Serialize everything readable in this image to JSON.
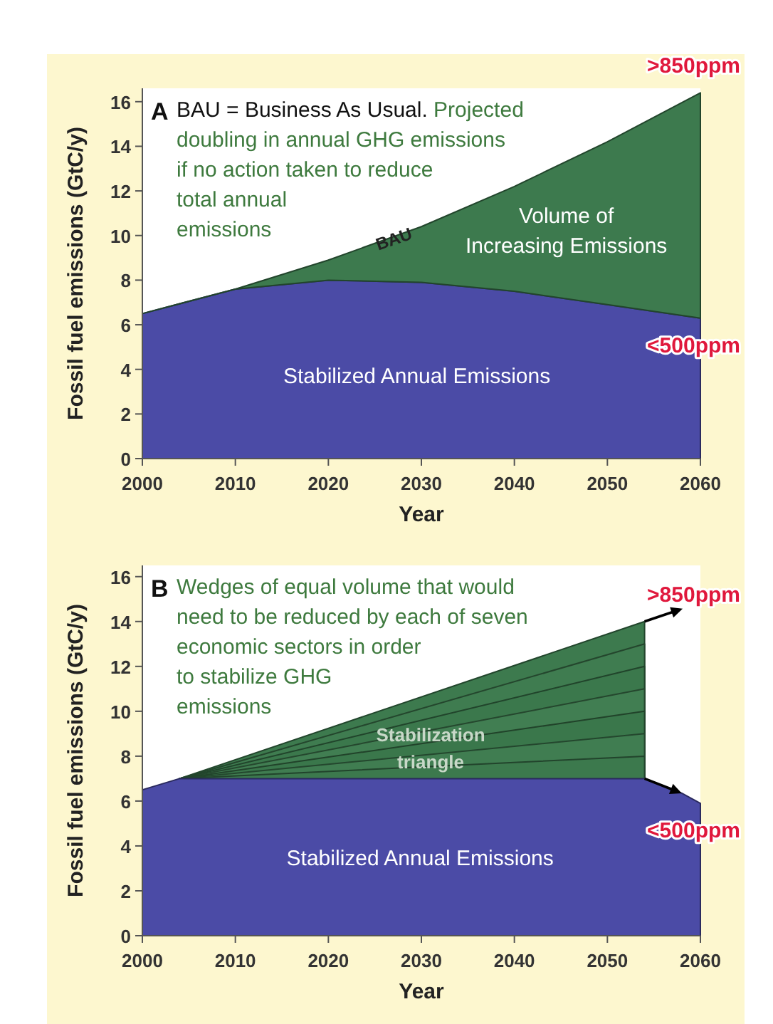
{
  "chart_data": [
    {
      "type": "area",
      "title": "A",
      "xlabel": "Year",
      "ylabel": "Fossil fuel emissions (GtC/y)",
      "stacked": true,
      "x": [
        2000,
        2010,
        2020,
        2030,
        2040,
        2050,
        2060
      ],
      "series": [
        {
          "name": "Stabilized Annual Emissions",
          "color": "#4b4ba6",
          "values": [
            6.5,
            7.6,
            8.0,
            7.9,
            7.5,
            6.9,
            6.3
          ]
        },
        {
          "name": "Volume of Increasing Emissions",
          "color": "#3d7a4e",
          "values": [
            0,
            0,
            0.9,
            2.5,
            4.7,
            7.3,
            10.1
          ]
        }
      ],
      "xlim": [
        2000,
        2060
      ],
      "xticks": [
        2000,
        2010,
        2020,
        2030,
        2040,
        2050,
        2060
      ],
      "ylim": [
        0,
        16.6
      ],
      "yticks": [
        0,
        2,
        4,
        6,
        8,
        10,
        12,
        14,
        16
      ],
      "annotations": [
        "BAU = Business As Usual.",
        "Projected doubling in annual GHG emissions if no action taken to reduce total annual emissions",
        {
          "text": "BAU",
          "x": 2027,
          "y": 9.9
        },
        {
          "text": ">850ppm",
          "x": 2060,
          "y": 16.4
        },
        {
          "text": "<500ppm",
          "x": 2060,
          "y": 6.3
        }
      ]
    },
    {
      "type": "area",
      "title": "B",
      "xlabel": "Year",
      "ylabel": "Fossil fuel emissions (GtC/y)",
      "x": [
        2004,
        2054
      ],
      "series": [
        {
          "color": "#3d7a4e",
          "values": [
            7,
            14
          ]
        },
        {
          "color": "#3f7c50",
          "values": [
            7,
            13
          ]
        },
        {
          "color": "#3b784c",
          "values": [
            7,
            12
          ]
        },
        {
          "color": "#417e52",
          "values": [
            7,
            11
          ]
        },
        {
          "color": "#3a774b",
          "values": [
            7,
            10
          ]
        },
        {
          "color": "#407d51",
          "values": [
            7,
            9
          ]
        },
        {
          "color": "#3c794d",
          "values": [
            7,
            8
          ]
        },
        {
          "name": "Stabilized Annual Emissions",
          "color": "#4b4ba6",
          "x": [
            2000,
            2004,
            2054,
            2058,
            2060
          ],
          "values": [
            6.5,
            7,
            7,
            6.35,
            5.9
          ]
        }
      ],
      "xlim": [
        2000,
        2060
      ],
      "xticks": [
        2000,
        2010,
        2020,
        2030,
        2040,
        2050,
        2060
      ],
      "ylim": [
        0,
        16.5
      ],
      "yticks": [
        0,
        2,
        4,
        6,
        8,
        10,
        12,
        14,
        16
      ],
      "annotations": [
        "Wedges of equal volume that would need to be reduced by each of seven economic sectors in order to stabilize GHG emissions",
        {
          "text": "Stabilization triangle",
          "x": 2031,
          "y": 8.4
        },
        {
          "text": ">850ppm",
          "x": 2054,
          "y": 14
        },
        {
          "text": "<500ppm",
          "x": 2060,
          "y": 5.9
        }
      ]
    }
  ]
}
